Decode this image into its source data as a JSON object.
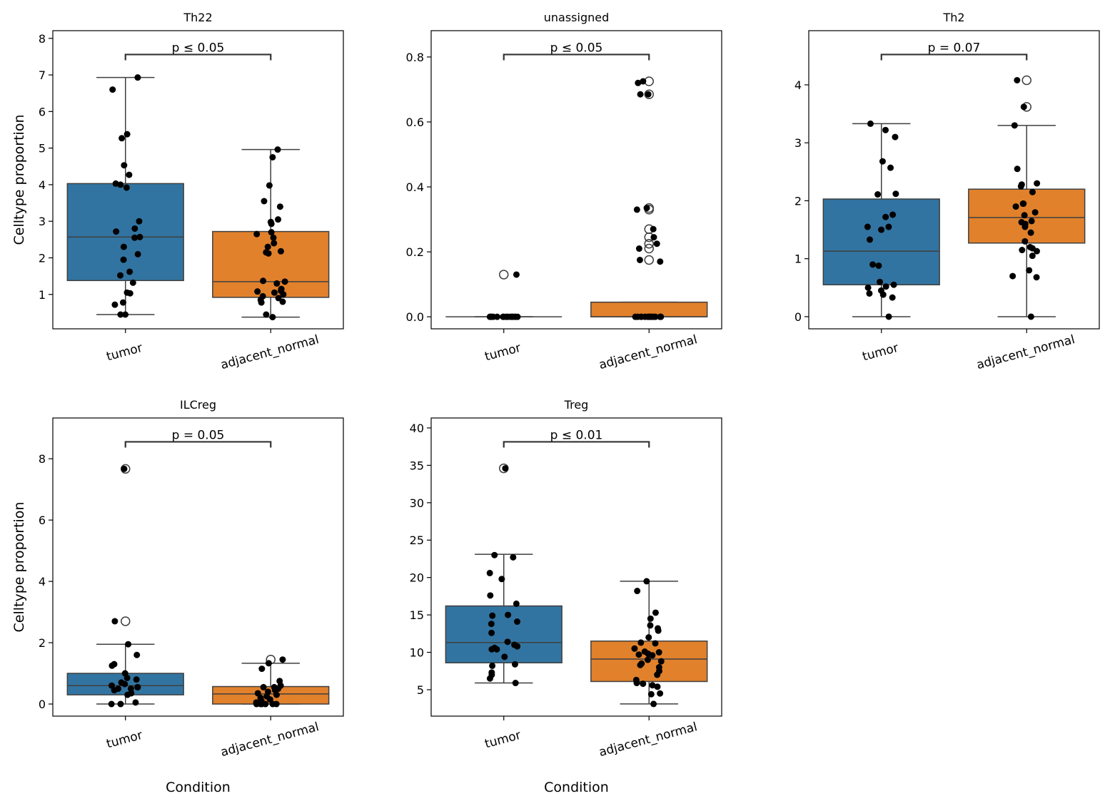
{
  "chart_data": [
    {
      "type": "box",
      "title": "Th22",
      "ylabel": "Celltype proportion",
      "categories": [
        "tumor",
        "adjacent_normal"
      ],
      "colors": [
        "#3274a1",
        "#e1812c"
      ],
      "ylim": [
        0.06,
        8.21
      ],
      "yticks": [
        1,
        2,
        3,
        4,
        5,
        6,
        7,
        8
      ],
      "annotation": "p ≤ 0.05",
      "boxes": [
        {
          "whislo": 0.45,
          "q1": 1.38,
          "med": 2.57,
          "q3": 4.03,
          "whishi": 6.93,
          "fliers": [],
          "points": [
            6.93,
            6.6,
            5.38,
            5.27,
            4.53,
            4.27,
            4.03,
            4.0,
            3.92,
            3.0,
            2.8,
            2.72,
            2.57,
            2.55,
            2.3,
            2.1,
            1.95,
            1.62,
            1.52,
            1.32,
            1.05,
            1.03,
            0.78,
            0.72,
            0.45,
            0.45
          ]
        },
        {
          "whislo": 0.38,
          "q1": 0.92,
          "med": 1.35,
          "q3": 2.72,
          "whishi": 4.96,
          "fliers": [],
          "points": [
            4.96,
            4.75,
            3.98,
            3.55,
            3.4,
            3.05,
            2.98,
            2.93,
            2.7,
            2.65,
            2.55,
            2.4,
            2.3,
            2.18,
            2.15,
            2.12,
            1.37,
            1.35,
            1.3,
            1.15,
            1.1,
            1.08,
            1.05,
            1.0,
            0.95,
            0.9,
            0.85,
            0.8,
            0.78,
            0.45,
            0.38
          ]
        }
      ]
    },
    {
      "type": "box",
      "title": "unassigned",
      "categories": [
        "tumor",
        "adjacent_normal"
      ],
      "colors": [
        "#3274a1",
        "#e1812c"
      ],
      "ylim": [
        -0.037,
        0.881
      ],
      "yticks": [
        {
          "value": 0,
          "label": "0.0"
        },
        0.2,
        0.4,
        0.6,
        0.8
      ],
      "annotation": "p ≤ 0.05",
      "boxes": [
        {
          "whislo": 0,
          "q1": 0,
          "med": 0,
          "q3": 0,
          "whishi": 0,
          "fliers": [
            0.13
          ],
          "points": [
            0.13,
            0,
            0,
            0,
            0,
            0,
            0,
            0,
            0,
            0,
            0,
            0,
            0,
            0,
            0,
            0
          ]
        },
        {
          "whislo": 0,
          "q1": 0,
          "med": 0,
          "q3": 0.045,
          "whishi": 0.045,
          "fliers": [
            0.725,
            0.685,
            0.335,
            0.33,
            0.27,
            0.245,
            0.225,
            0.21,
            0.175
          ],
          "points": [
            0.725,
            0.72,
            0.685,
            0.685,
            0.335,
            0.33,
            0.27,
            0.245,
            0.225,
            0.21,
            0.175,
            0.17,
            0,
            0,
            0,
            0,
            0,
            0,
            0,
            0,
            0,
            0,
            0,
            0,
            0,
            0,
            0
          ]
        }
      ]
    },
    {
      "type": "box",
      "title": "Th2",
      "categories": [
        "tumor",
        "adjacent_normal"
      ],
      "colors": [
        "#3274a1",
        "#e1812c"
      ],
      "ylim": [
        -0.21,
        4.935
      ],
      "yticks": [
        0,
        1,
        2,
        3,
        4
      ],
      "annotation": "p = 0.07",
      "boxes": [
        {
          "whislo": 0,
          "q1": 0.55,
          "med": 1.13,
          "q3": 2.03,
          "whishi": 3.33,
          "fliers": [],
          "points": [
            3.33,
            3.22,
            3.1,
            2.68,
            2.57,
            2.12,
            2.11,
            1.76,
            1.72,
            1.55,
            1.55,
            1.5,
            1.33,
            0.9,
            0.88,
            0.6,
            0.55,
            0.52,
            0.5,
            0.45,
            0.4,
            0.38,
            0.33,
            0
          ]
        },
        {
          "whislo": 0,
          "q1": 1.27,
          "med": 1.71,
          "q3": 2.2,
          "whishi": 3.3,
          "fliers": [
            4.08,
            3.62
          ],
          "points": [
            4.08,
            3.62,
            3.3,
            2.55,
            2.3,
            2.28,
            2.25,
            2.15,
            1.95,
            1.95,
            1.9,
            1.8,
            1.75,
            1.65,
            1.63,
            1.6,
            1.55,
            1.45,
            1.3,
            1.2,
            1.18,
            1.15,
            1.13,
            1.05,
            0.8,
            0.7,
            0.68,
            0
          ]
        }
      ]
    },
    {
      "type": "box",
      "title": "ILCreg",
      "ylabel": "Celltype proportion",
      "xlabel": "Condition",
      "categories": [
        "tumor",
        "adjacent_normal"
      ],
      "colors": [
        "#3274a1",
        "#e1812c"
      ],
      "ylim": [
        -0.395,
        9.33
      ],
      "yticks": [
        0,
        2,
        4,
        6,
        8
      ],
      "annotation": "p = 0.05",
      "boxes": [
        {
          "whislo": 0,
          "q1": 0.3,
          "med": 0.6,
          "q3": 1.0,
          "whishi": 1.95,
          "fliers": [
            7.67,
            2.7
          ],
          "points": [
            7.67,
            2.7,
            1.95,
            1.6,
            1.3,
            1.25,
            1.0,
            0.85,
            0.8,
            0.7,
            0.65,
            0.6,
            0.55,
            0.55,
            0.5,
            0.5,
            0.45,
            0.35,
            0.3,
            0.05,
            0,
            0
          ]
        },
        {
          "whislo": 0,
          "q1": 0,
          "med": 0.33,
          "q3": 0.57,
          "whishi": 1.33,
          "fliers": [
            1.45
          ],
          "points": [
            1.45,
            1.33,
            1.15,
            0.75,
            0.6,
            0.55,
            0.55,
            0.5,
            0.45,
            0.4,
            0.35,
            0.3,
            0.25,
            0.2,
            0.15,
            0.1,
            0.05,
            0,
            0,
            0,
            0,
            0,
            0
          ]
        }
      ]
    },
    {
      "type": "box",
      "title": "Treg",
      "xlabel": "Condition",
      "categories": [
        "tumor",
        "adjacent_normal"
      ],
      "colors": [
        "#3274a1",
        "#e1812c"
      ],
      "ylim": [
        1.47,
        41.33
      ],
      "yticks": [
        5,
        10,
        15,
        20,
        25,
        30,
        35,
        40
      ],
      "annotation": "p ≤ 0.01",
      "boxes": [
        {
          "whislo": 5.9,
          "q1": 8.6,
          "med": 11.3,
          "q3": 16.2,
          "whishi": 23.1,
          "fliers": [
            34.6
          ],
          "points": [
            34.6,
            23.0,
            22.7,
            20.6,
            19.8,
            17.6,
            16.5,
            15.0,
            14.9,
            14.1,
            13.8,
            12.6,
            11.4,
            11.0,
            10.8,
            10.6,
            10.4,
            10.4,
            9.4,
            8.4,
            8.2,
            7.3,
            7.0,
            6.5,
            5.9
          ]
        },
        {
          "whislo": 3.1,
          "q1": 6.1,
          "med": 9.1,
          "q3": 11.5,
          "whishi": 19.5,
          "fliers": [],
          "points": [
            19.5,
            18.2,
            15.3,
            14.5,
            13.6,
            13.2,
            12.9,
            12.0,
            11.3,
            11.2,
            10.5,
            10.1,
            10.0,
            9.8,
            9.7,
            9.6,
            9.0,
            8.8,
            8.5,
            8.3,
            8.0,
            7.5,
            7.0,
            6.3,
            5.9,
            5.8,
            5.6,
            5.4,
            4.5,
            4.4,
            3.1
          ]
        }
      ]
    }
  ]
}
